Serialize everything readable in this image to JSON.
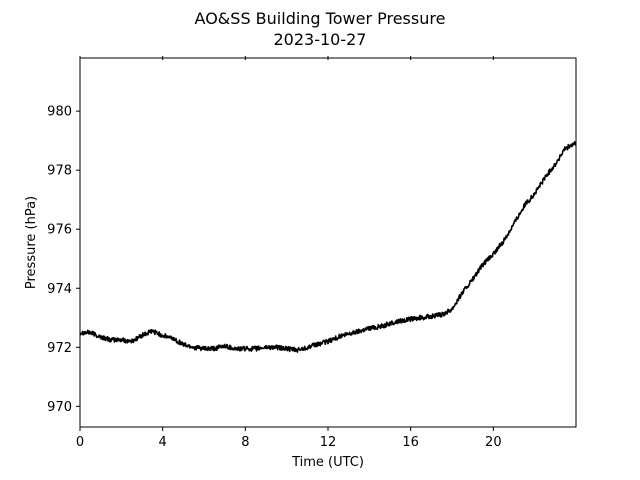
{
  "chart_data": {
    "type": "line",
    "title": "AO&SS Building Tower Pressure",
    "subtitle": "2023-10-27",
    "xlabel": "Time (UTC)",
    "ylabel": "Pressure (hPa)",
    "xlim": [
      0,
      24
    ],
    "ylim": [
      969.3,
      981.8
    ],
    "xticks": [
      0,
      4,
      8,
      12,
      16,
      20
    ],
    "yticks": [
      970,
      972,
      974,
      976,
      978,
      980
    ],
    "grid": false,
    "series": [
      {
        "color": "#000000",
        "x": [
          0,
          0.5,
          1,
          1.5,
          2,
          2.5,
          3,
          3.5,
          4,
          4.5,
          5,
          5.5,
          6,
          6.5,
          7,
          7.5,
          8,
          8.5,
          9,
          9.5,
          10,
          10.5,
          11,
          11.5,
          12,
          12.5,
          13,
          13.5,
          14,
          14.5,
          15,
          15.5,
          16,
          16.5,
          17,
          17.5,
          18,
          18.5,
          19,
          19.5,
          20,
          20.5,
          21,
          21.5,
          22,
          22.5,
          23,
          23.5,
          24
        ],
        "y": [
          972.5,
          972.5,
          972.35,
          972.25,
          972.25,
          972.2,
          972.4,
          972.55,
          972.4,
          972.3,
          972.1,
          972.0,
          971.95,
          971.95,
          972.05,
          971.95,
          971.95,
          971.95,
          972.0,
          972.0,
          971.95,
          971.9,
          972.0,
          972.1,
          972.2,
          972.35,
          972.45,
          972.55,
          972.65,
          972.7,
          972.8,
          972.9,
          972.95,
          973.0,
          973.05,
          973.1,
          973.3,
          973.85,
          974.3,
          974.8,
          975.15,
          975.6,
          976.2,
          976.8,
          977.2,
          977.75,
          978.2,
          978.75,
          978.9
        ]
      }
    ]
  }
}
